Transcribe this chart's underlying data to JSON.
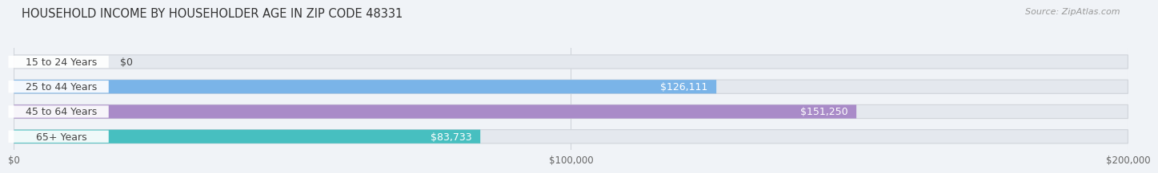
{
  "title": "HOUSEHOLD INCOME BY HOUSEHOLDER AGE IN ZIP CODE 48331",
  "source": "Source: ZipAtlas.com",
  "categories": [
    "15 to 24 Years",
    "25 to 44 Years",
    "45 to 64 Years",
    "65+ Years"
  ],
  "values": [
    0,
    126111,
    151250,
    83733
  ],
  "value_labels": [
    "$0",
    "$126,111",
    "$151,250",
    "$83,733"
  ],
  "bar_colors": [
    "#f0a0aa",
    "#7ab4e8",
    "#a98bc8",
    "#47bfc0"
  ],
  "background_color": "#f0f3f7",
  "bar_bg_color": "#e4e8ee",
  "xlim": [
    0,
    200000
  ],
  "xtick_values": [
    0,
    100000,
    200000
  ],
  "xtick_labels": [
    "$0",
    "$100,000",
    "$200,000"
  ],
  "title_fontsize": 10.5,
  "source_fontsize": 8,
  "cat_label_fontsize": 9,
  "val_label_fontsize": 9,
  "bar_height": 0.55,
  "label_pill_color": "#ffffff",
  "label_pill_alpha": 0.92,
  "grid_color": "#d0d4da"
}
